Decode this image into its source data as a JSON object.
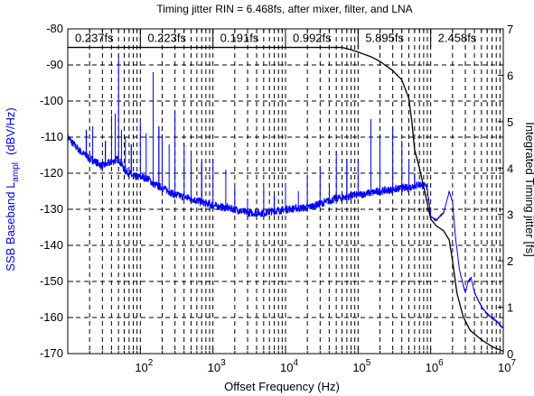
{
  "chart_data": {
    "type": "line",
    "title": "Timing jitter RIN = 6.468fs, after mixer, filter, and LNA",
    "xlabel": "Offset Frequency (Hz)",
    "ylabel_left_prefix": "SSB Baseband L",
    "ylabel_left_sub": "ampl",
    "ylabel_left_units": "(dBV/Hz)",
    "ylabel_right": "Integrated Timing jitter [fs]",
    "x_scale": "log",
    "xlim": [
      10,
      10000000
    ],
    "ylim_left": [
      -170,
      -80
    ],
    "ylim_right": [
      0,
      7
    ],
    "grid": true,
    "x_ticks": [
      {
        "base": "10",
        "exp": "2",
        "value": 100
      },
      {
        "base": "10",
        "exp": "3",
        "value": 1000
      },
      {
        "base": "10",
        "exp": "4",
        "value": 10000
      },
      {
        "base": "10",
        "exp": "5",
        "value": 100000
      },
      {
        "base": "10",
        "exp": "6",
        "value": 1000000
      },
      {
        "base": "10",
        "exp": "7",
        "value": 10000000
      }
    ],
    "y_left_ticks": [
      "-80",
      "-90",
      "-100",
      "-110",
      "-120",
      "-130",
      "-140",
      "-150",
      "-160",
      "-170"
    ],
    "y_right_ticks": [
      "7",
      "6",
      "5",
      "4",
      "3",
      "2",
      "1",
      "0"
    ],
    "band_edges": [
      10,
      100,
      1000,
      10000,
      100000,
      1000000,
      10000000
    ],
    "band_labels": [
      "0.237fs",
      "0.223fs",
      "0.191fs",
      "0.992fs",
      "5.895fs",
      "2.458fs"
    ],
    "series": [
      {
        "axis": "left",
        "color": "#0000ff",
        "baseline": [
          [
            10,
            -110
          ],
          [
            12,
            -112
          ],
          [
            15,
            -114
          ],
          [
            20,
            -116
          ],
          [
            25,
            -117
          ],
          [
            30,
            -118
          ],
          [
            40,
            -117
          ],
          [
            50,
            -116
          ],
          [
            60,
            -119
          ],
          [
            70,
            -120
          ],
          [
            80,
            -121
          ],
          [
            100,
            -121
          ],
          [
            130,
            -121.5
          ],
          [
            150,
            -123
          ],
          [
            200,
            -124
          ],
          [
            300,
            -126
          ],
          [
            500,
            -127
          ],
          [
            700,
            -128
          ],
          [
            1000,
            -129
          ],
          [
            2000,
            -130
          ],
          [
            3000,
            -131
          ],
          [
            5000,
            -131
          ],
          [
            10000,
            -130
          ],
          [
            20000,
            -129.5
          ],
          [
            30000,
            -128.5
          ],
          [
            50000,
            -127
          ],
          [
            100000,
            -126
          ],
          [
            200000,
            -125
          ],
          [
            300000,
            -124.5
          ],
          [
            500000,
            -124
          ],
          [
            700000,
            -123
          ],
          [
            900000,
            -124
          ],
          [
            1000000,
            -132
          ],
          [
            1200000,
            -133
          ],
          [
            1500000,
            -131
          ],
          [
            1700000,
            -127
          ],
          [
            1800000,
            -125
          ],
          [
            2000000,
            -128
          ],
          [
            2200000,
            -138
          ],
          [
            2500000,
            -147
          ],
          [
            2800000,
            -151
          ],
          [
            3000000,
            -153
          ],
          [
            3300000,
            -150
          ],
          [
            3600000,
            -149
          ],
          [
            4000000,
            -153
          ],
          [
            5000000,
            -157
          ],
          [
            6000000,
            -159
          ],
          [
            8000000,
            -161
          ],
          [
            10000000,
            -163
          ]
        ],
        "spikes": [
          [
            18,
            -108
          ],
          [
            22,
            -107
          ],
          [
            33,
            -111
          ],
          [
            40,
            -104
          ],
          [
            45,
            -103.5
          ],
          [
            50,
            -87
          ],
          [
            55,
            -108
          ],
          [
            62,
            -110
          ],
          [
            75,
            -112
          ],
          [
            100,
            -106
          ],
          [
            120,
            -109
          ],
          [
            150,
            -92
          ],
          [
            180,
            -107
          ],
          [
            200,
            -110
          ],
          [
            250,
            -112
          ],
          [
            300,
            -103
          ],
          [
            400,
            -112
          ],
          [
            500,
            -114
          ],
          [
            700,
            -117
          ],
          [
            1000,
            -116
          ],
          [
            1500,
            -119
          ],
          [
            2000,
            -124
          ],
          [
            3000,
            -127
          ],
          [
            5000,
            -124
          ],
          [
            7000,
            -126
          ],
          [
            10000,
            -123
          ],
          [
            15000,
            -125
          ],
          [
            20000,
            -121
          ],
          [
            30000,
            -118
          ],
          [
            40000,
            -123
          ],
          [
            50000,
            -114
          ],
          [
            70000,
            -116
          ],
          [
            100000,
            -116
          ],
          [
            150000,
            -105
          ],
          [
            200000,
            -110
          ],
          [
            300000,
            -107
          ],
          [
            400000,
            -111
          ],
          [
            500000,
            -116
          ],
          [
            600000,
            -120
          ]
        ]
      },
      {
        "axis": "right",
        "color": "#000000",
        "points": [
          [
            10,
            6.6
          ],
          [
            60000,
            6.6
          ],
          [
            80000,
            6.55
          ],
          [
            100000,
            6.5
          ],
          [
            150000,
            6.4
          ],
          [
            200000,
            6.3
          ],
          [
            300000,
            6.1
          ],
          [
            400000,
            5.9
          ],
          [
            500000,
            5.5
          ],
          [
            550000,
            5.0
          ],
          [
            600000,
            4.4
          ],
          [
            700000,
            4.0
          ],
          [
            800000,
            3.6
          ],
          [
            1000000,
            2.9
          ],
          [
            1200000,
            2.75
          ],
          [
            1500000,
            2.65
          ],
          [
            1800000,
            2.45
          ],
          [
            2000000,
            2.0
          ],
          [
            2300000,
            1.3
          ],
          [
            2800000,
            0.8
          ],
          [
            3500000,
            0.5
          ],
          [
            5000000,
            0.3
          ],
          [
            7000000,
            0.15
          ],
          [
            10000000,
            0.05
          ]
        ]
      }
    ]
  }
}
